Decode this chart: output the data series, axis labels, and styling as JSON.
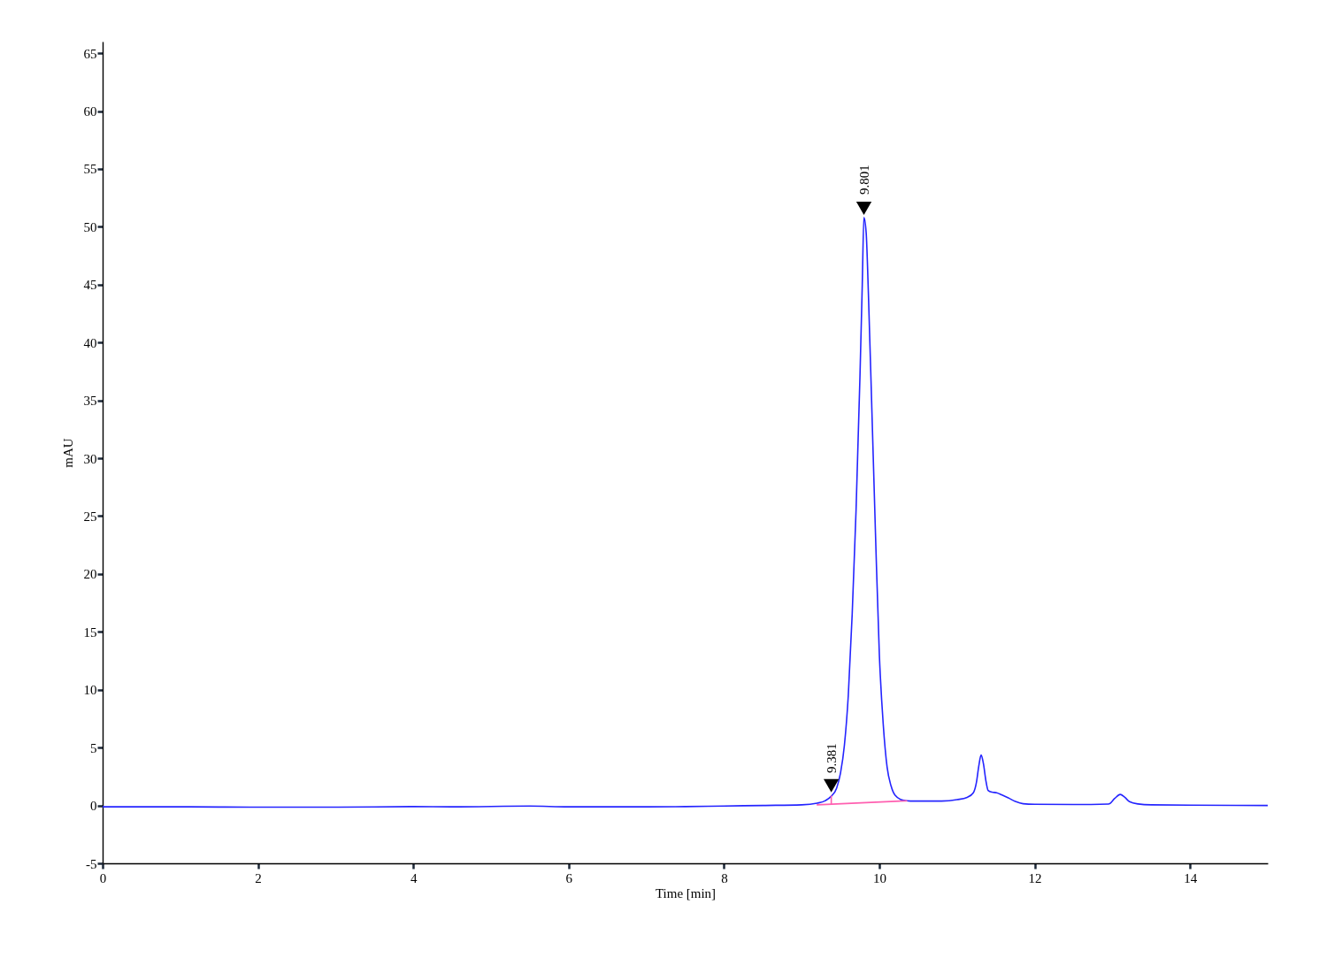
{
  "chart_data": {
    "type": "line",
    "xlabel": "Time [min]",
    "ylabel": "mAU",
    "xlim": [
      0,
      15
    ],
    "ylim": [
      -5,
      66
    ],
    "xticks": [
      0,
      2,
      4,
      6,
      8,
      10,
      12,
      14
    ],
    "yticks": [
      -5,
      0,
      5,
      10,
      15,
      20,
      25,
      30,
      35,
      40,
      45,
      50,
      55,
      60,
      65
    ],
    "grid": false,
    "marker": "none",
    "line_style": "solid",
    "series": [
      {
        "color": "#2424ff",
        "x": [
          0,
          1,
          2,
          3,
          4,
          4.5,
          5.5,
          6,
          7,
          7.5,
          8,
          8.5,
          9.0,
          9.2,
          9.3,
          9.381,
          9.45,
          9.5,
          9.55,
          9.6,
          9.65,
          9.7,
          9.75,
          9.78,
          9.801,
          9.83,
          9.86,
          9.9,
          9.95,
          10.0,
          10.05,
          10.1,
          10.15,
          10.2,
          10.3,
          10.4,
          10.8,
          11.0,
          11.13,
          11.21,
          11.25,
          11.28,
          11.31,
          11.34,
          11.37,
          11.4,
          11.45,
          11.51,
          11.58,
          11.66,
          11.75,
          11.85,
          12.0,
          12.5,
          12.95,
          13.03,
          13.1,
          13.16,
          13.22,
          13.33,
          13.5,
          14,
          15
        ],
        "values": [
          -0.12,
          -0.12,
          -0.15,
          -0.15,
          -0.1,
          -0.12,
          -0.05,
          -0.12,
          -0.12,
          -0.1,
          -0.05,
          0.0,
          0.05,
          0.2,
          0.4,
          0.8,
          1.5,
          2.8,
          5.2,
          9.5,
          16.5,
          25.5,
          37,
          45,
          50.8,
          49.5,
          44,
          35,
          23.5,
          13,
          7,
          3.3,
          1.7,
          0.9,
          0.46,
          0.38,
          0.38,
          0.5,
          0.7,
          1.1,
          2.0,
          3.4,
          4.35,
          3.6,
          2.2,
          1.3,
          1.15,
          1.1,
          0.9,
          0.65,
          0.35,
          0.15,
          0.1,
          0.08,
          0.12,
          0.6,
          0.95,
          0.7,
          0.33,
          0.13,
          0.05,
          0.02,
          0.0
        ]
      },
      {
        "color": "#ff5fb0",
        "x": [
          9.2,
          10.35
        ],
        "values": [
          0.05,
          0.4
        ]
      },
      {
        "color": "#ff5fb0",
        "x": [
          9.381,
          9.381
        ],
        "values": [
          0.12,
          0.8
        ]
      },
      {
        "type": "scatter",
        "color": "#000000",
        "marker": "triangle",
        "x": [
          9.381,
          9.801
        ],
        "values": [
          1.7,
          51.6
        ]
      }
    ],
    "annotations": [
      {
        "text": "9.381",
        "x": 9.381,
        "y": 0.8
      },
      {
        "text": "9.801",
        "x": 9.801,
        "y": 50.8
      }
    ]
  }
}
